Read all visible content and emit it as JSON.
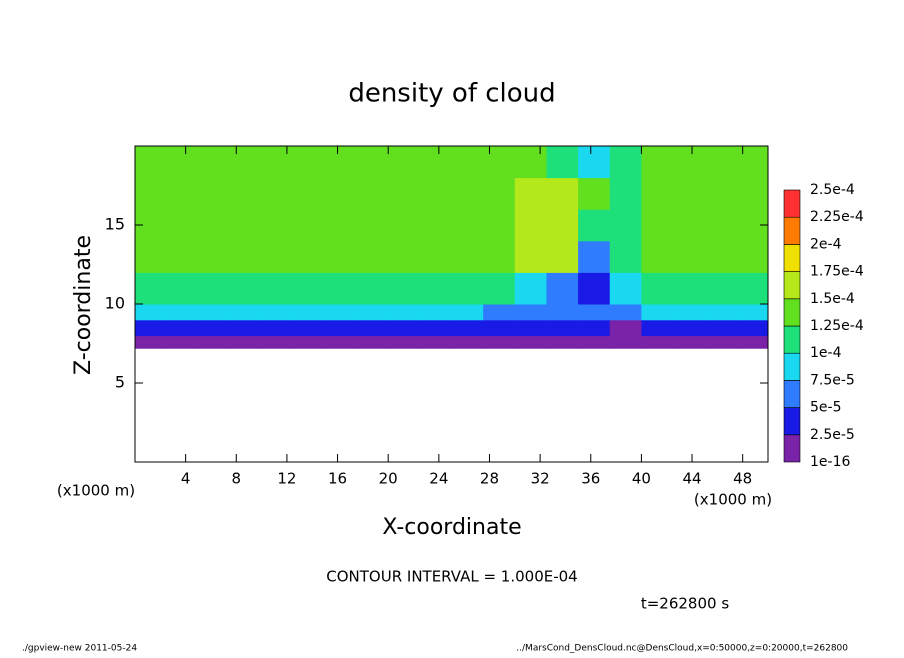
{
  "chart_data": {
    "type": "heatmap",
    "title": "density of cloud",
    "x_label": "X-coordinate",
    "y_label": "Z-coordinate",
    "x_scale_label": "(x1000 m)",
    "y_scale_label": "(x1000 m)",
    "note": "CONTOUR INTERVAL = 1.000E-04",
    "time_label": "t=262800 s",
    "footer_left": "./gpview-new  2011-05-24",
    "footer_right": "../MarsCond_DensCloud.nc@DensCloud,x=0:50000,z=0:20000,t=262800",
    "xlim": [
      0,
      50
    ],
    "ylim": [
      0,
      20
    ],
    "xticks": [
      4,
      8,
      12,
      16,
      20,
      24,
      28,
      32,
      36,
      40,
      44,
      48
    ],
    "yticks": [
      5,
      10,
      15
    ],
    "x_edges": [
      0,
      2.5,
      5,
      7.5,
      10,
      12.5,
      15,
      17.5,
      20,
      22.5,
      25,
      27.5,
      30,
      32.5,
      35,
      37.5,
      40,
      42.5,
      45,
      47.5,
      50
    ],
    "z_edges": [
      7.2,
      8,
      9,
      10,
      12,
      14,
      16,
      18,
      20
    ],
    "values": [
      [
        1e-05,
        1e-05,
        1e-05,
        1e-05,
        1e-05,
        1e-05,
        1e-05,
        1e-05,
        1e-05,
        1e-05,
        1e-05,
        1e-05,
        1e-05,
        1e-05,
        1e-05,
        1e-05,
        1e-05,
        1e-05,
        1e-05,
        1e-05
      ],
      [
        4e-05,
        4e-05,
        4e-05,
        4e-05,
        4e-05,
        4e-05,
        4e-05,
        4e-05,
        4e-05,
        4e-05,
        4e-05,
        4e-05,
        3e-05,
        3e-05,
        3e-05,
        2e-05,
        4e-05,
        4e-05,
        4e-05,
        4e-05
      ],
      [
        8e-05,
        8e-05,
        8e-05,
        8e-05,
        8e-05,
        8e-05,
        8e-05,
        8e-05,
        8e-05,
        8e-05,
        8e-05,
        7e-05,
        6e-05,
        5e-05,
        5e-05,
        5e-05,
        8e-05,
        8e-05,
        8e-05,
        8e-05
      ],
      [
        0.000115,
        0.000115,
        0.000115,
        0.000115,
        0.000115,
        0.000115,
        0.000115,
        0.000115,
        0.000115,
        0.000115,
        0.000115,
        0.000105,
        8e-05,
        5e-05,
        4e-05,
        9e-05,
        0.000115,
        0.000115,
        0.000115,
        0.000115
      ],
      [
        0.00013,
        0.00013,
        0.00013,
        0.00013,
        0.00013,
        0.00013,
        0.00013,
        0.00013,
        0.00013,
        0.00013,
        0.00013,
        0.00014,
        0.00015,
        0.00016,
        5e-05,
        0.00011,
        0.00013,
        0.00013,
        0.00013,
        0.00013
      ],
      [
        0.000135,
        0.000135,
        0.000135,
        0.000135,
        0.000135,
        0.000135,
        0.000135,
        0.000135,
        0.000135,
        0.000135,
        0.000135,
        0.000145,
        0.00015,
        0.00017,
        0.0001,
        0.00012,
        0.000135,
        0.000135,
        0.000135,
        0.000135
      ],
      [
        0.000135,
        0.000135,
        0.000135,
        0.000135,
        0.000135,
        0.000135,
        0.000135,
        0.000135,
        0.000135,
        0.000135,
        0.000135,
        0.00014,
        0.00015,
        0.00015,
        0.00013,
        0.00012,
        0.00013,
        0.00013,
        0.00013,
        0.00013
      ],
      [
        0.00013,
        0.00013,
        0.00013,
        0.00013,
        0.00013,
        0.00013,
        0.00013,
        0.00013,
        0.00013,
        0.00013,
        0.00013,
        0.00013,
        0.00013,
        0.00011,
        9e-05,
        0.0001,
        0.000125,
        0.000125,
        0.000125,
        0.000125
      ]
    ],
    "levels": [
      {
        "value": 1e-16,
        "label": "1e-16"
      },
      {
        "value": 2.5e-05,
        "label": "2.5e-5"
      },
      {
        "value": 5e-05,
        "label": "5e-5"
      },
      {
        "value": 7.5e-05,
        "label": "7.5e-5"
      },
      {
        "value": 0.0001,
        "label": "1e-4"
      },
      {
        "value": 0.000125,
        "label": "1.25e-4"
      },
      {
        "value": 0.00015,
        "label": "1.5e-4"
      },
      {
        "value": 0.000175,
        "label": "1.75e-4"
      },
      {
        "value": 0.0002,
        "label": "2e-4"
      },
      {
        "value": 0.000225,
        "label": "2.25e-4"
      },
      {
        "value": 0.00025,
        "label": "2.5e-4"
      }
    ],
    "colors": [
      "#7a22a8",
      "#1a1ae6",
      "#2f7cff",
      "#19d8f0",
      "#1ee07a",
      "#62e020",
      "#b4e81a",
      "#f0e000",
      "#ff7a00",
      "#ff3030"
    ]
  }
}
